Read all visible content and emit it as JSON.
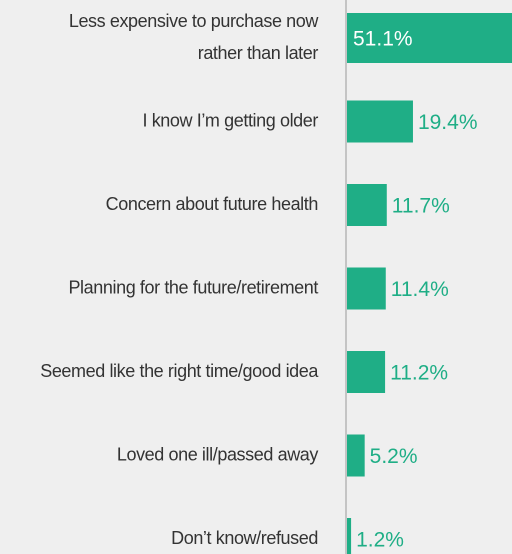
{
  "chart_data": {
    "type": "bar",
    "orientation": "horizontal",
    "categories": [
      "Less expensive to purchase now rather than later",
      "I know I’m getting older",
      "Concern about future health",
      "Planning for the future/retirement",
      "Seemed like the right time/good idea",
      "Loved one ill/passed away",
      "Don’t know/refused"
    ],
    "values": [
      51.1,
      19.4,
      11.7,
      11.4,
      11.2,
      5.2,
      1.2
    ],
    "value_labels": [
      "51.1%",
      "19.4%",
      "11.7%",
      "11.4%",
      "11.2%",
      "5.2%",
      "1.2%"
    ],
    "color": "#1fae86"
  }
}
